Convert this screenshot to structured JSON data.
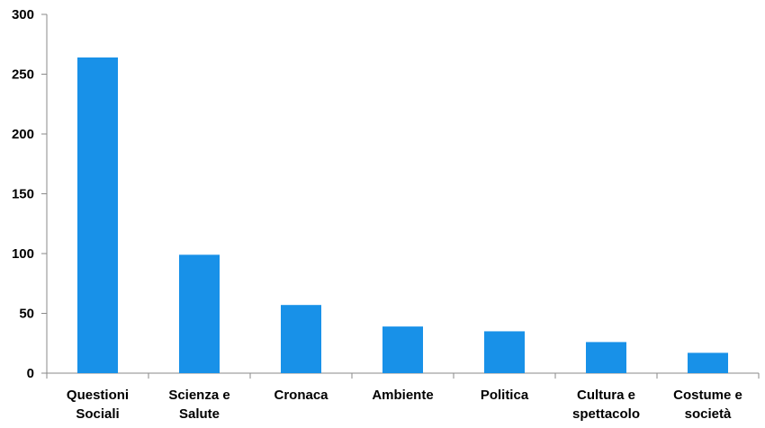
{
  "chart_data": {
    "type": "bar",
    "categories": [
      [
        "Questioni",
        "Sociali"
      ],
      [
        "Scienza e",
        "Salute"
      ],
      [
        "Cronaca"
      ],
      [
        "Ambiente"
      ],
      [
        "Politica"
      ],
      [
        "Cultura e",
        "spettacolo"
      ],
      [
        "Costume e",
        "società"
      ]
    ],
    "values": [
      264,
      99,
      57,
      39,
      35,
      26,
      17
    ],
    "ylim": [
      0,
      300
    ],
    "yticks": [
      0,
      50,
      100,
      150,
      200,
      250,
      300
    ],
    "bar_color": "#1891e8",
    "grid": false,
    "legend": "none"
  }
}
